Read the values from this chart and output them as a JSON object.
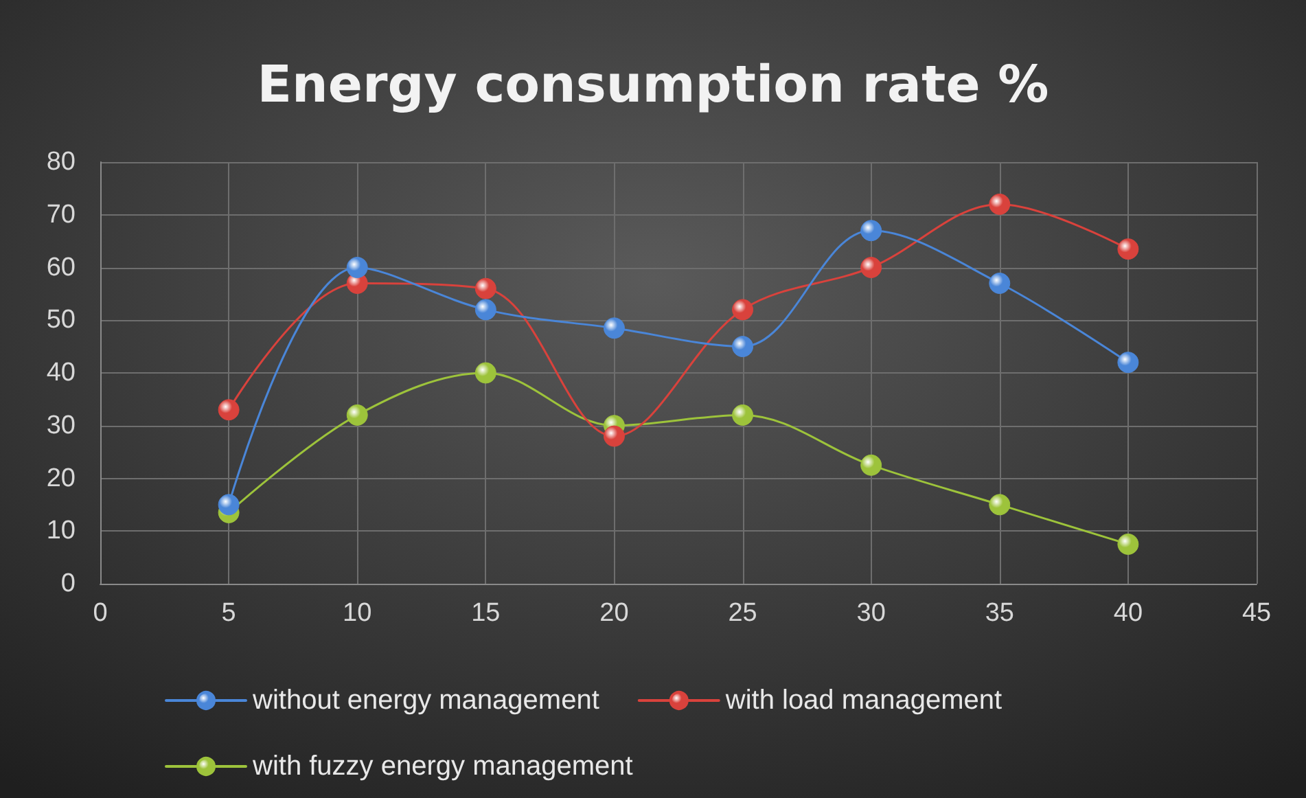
{
  "chart_data": {
    "type": "line",
    "title": "Energy consumption rate %",
    "x": [
      5,
      10,
      15,
      20,
      25,
      30,
      35,
      40
    ],
    "series": [
      {
        "name": "without energy management",
        "color": "#4a86d8",
        "values": [
          15,
          60,
          52,
          48.5,
          45,
          67,
          57,
          42
        ]
      },
      {
        "name": "with load management",
        "color": "#d9423c",
        "values": [
          33,
          57,
          56,
          28,
          52,
          60,
          72,
          63.5
        ]
      },
      {
        "name": "with fuzzy energy management",
        "color": "#9dc33b",
        "values": [
          13.5,
          32,
          40,
          30,
          32,
          22.5,
          15,
          7.5
        ]
      }
    ],
    "xlim": [
      0,
      45
    ],
    "xticks": [
      0,
      5,
      10,
      15,
      20,
      25,
      30,
      35,
      40,
      45
    ],
    "ylim": [
      0,
      80
    ],
    "yticks": [
      0,
      10,
      20,
      30,
      40,
      50,
      60,
      70,
      80
    ],
    "grid": true,
    "legend": "bottom",
    "marker": "circle",
    "line_style": "solid"
  }
}
